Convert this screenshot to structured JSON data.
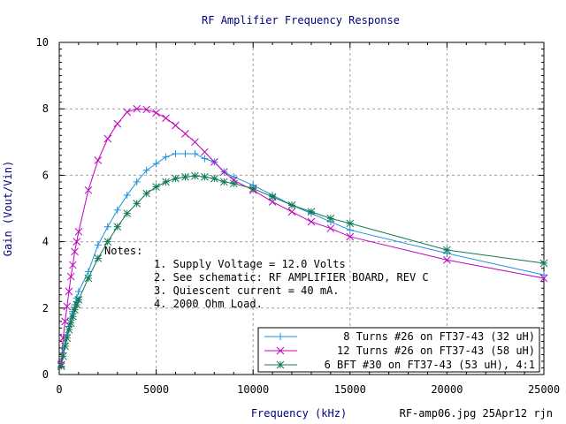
{
  "chart_data": {
    "type": "line",
    "title": "RF Amplifier Frequency Response",
    "xlabel": "Frequency (kHz)",
    "ylabel": "Gain (Vout/Vin)",
    "footer": "RF-amp06.jpg 25Apr12 rjn",
    "xlim": [
      0,
      25000
    ],
    "ylim": [
      0,
      10
    ],
    "x_ticks": [
      0,
      5000,
      10000,
      15000,
      20000,
      25000
    ],
    "x_tick_labels": [
      "0",
      "5000",
      "10000",
      "15000",
      "20000",
      "25000"
    ],
    "y_ticks": [
      0,
      2,
      4,
      6,
      8,
      10
    ],
    "y_tick_labels": [
      "0",
      "2",
      "4",
      "6",
      "8",
      "10"
    ],
    "grid": true,
    "legend_position": "bottom-right",
    "notes": {
      "heading": "Notes:",
      "lines": [
        "1. Supply Voltage = 12.0 Volts",
        "2. See schematic: RF AMPLIFIER BOARD, REV C",
        "3. Quiescent current = 40 mA.",
        "4. 2000 Ohm Load."
      ]
    },
    "series": [
      {
        "name": "8 Turns #26 on FT37-43 (32 uH)",
        "color": "#1e90e0",
        "marker": "plus",
        "x": [
          100,
          200,
          300,
          400,
          500,
          600,
          700,
          800,
          900,
          1000,
          1500,
          2000,
          2500,
          3000,
          3500,
          4000,
          4500,
          5000,
          5500,
          6000,
          6500,
          7000,
          7500,
          8000,
          8500,
          9000,
          10000,
          11000,
          12000,
          13000,
          14000,
          15000,
          20000,
          25000
        ],
        "y": [
          0.35,
          0.65,
          0.95,
          1.2,
          1.45,
          1.7,
          1.9,
          2.1,
          2.3,
          2.5,
          3.1,
          3.9,
          4.45,
          4.95,
          5.4,
          5.8,
          6.15,
          6.35,
          6.55,
          6.65,
          6.65,
          6.65,
          6.5,
          6.4,
          6.1,
          5.95,
          5.7,
          5.4,
          5.1,
          4.85,
          4.6,
          4.35,
          3.65,
          3.0
        ]
      },
      {
        "name": "12 Turns #26 on FT37-43 (58 uH)",
        "color": "#c000c0",
        "marker": "x",
        "x": [
          100,
          200,
          300,
          400,
          500,
          600,
          700,
          800,
          900,
          1000,
          1500,
          2000,
          2500,
          3000,
          3500,
          4000,
          4500,
          5000,
          5500,
          6000,
          6500,
          7000,
          7500,
          8000,
          8500,
          9000,
          10000,
          11000,
          12000,
          13000,
          14000,
          15000,
          20000,
          25000
        ],
        "y": [
          0.3,
          1.1,
          1.6,
          2.05,
          2.5,
          2.95,
          3.3,
          3.7,
          4.0,
          4.3,
          5.55,
          6.45,
          7.1,
          7.55,
          7.9,
          8.0,
          7.98,
          7.88,
          7.72,
          7.5,
          7.25,
          7.0,
          6.7,
          6.4,
          6.1,
          5.85,
          5.55,
          5.2,
          4.9,
          4.6,
          4.4,
          4.15,
          3.45,
          2.9
        ]
      },
      {
        "name": "6 BFT #30 on FT37-43 (53 uH), 4:1",
        "color": "#107850",
        "marker": "star",
        "x": [
          100,
          200,
          300,
          400,
          500,
          600,
          700,
          800,
          900,
          1000,
          1500,
          2000,
          2500,
          3000,
          3500,
          4000,
          4500,
          5000,
          5500,
          6000,
          6500,
          7000,
          7500,
          8000,
          8500,
          9000,
          10000,
          11000,
          12000,
          13000,
          14000,
          15000,
          20000,
          25000
        ],
        "y": [
          0.25,
          0.55,
          0.85,
          1.1,
          1.35,
          1.55,
          1.75,
          1.95,
          2.1,
          2.25,
          2.9,
          3.5,
          4.0,
          4.45,
          4.85,
          5.15,
          5.45,
          5.65,
          5.8,
          5.9,
          5.95,
          5.98,
          5.95,
          5.9,
          5.8,
          5.75,
          5.6,
          5.35,
          5.1,
          4.9,
          4.7,
          4.55,
          3.75,
          3.35
        ]
      }
    ]
  }
}
